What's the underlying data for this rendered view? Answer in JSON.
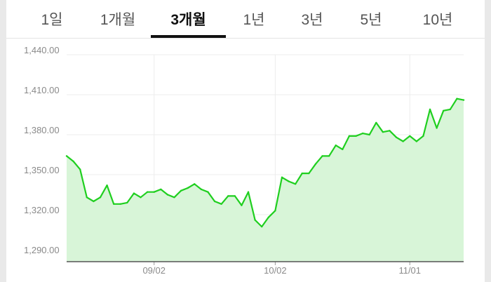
{
  "tabs": [
    {
      "label": "1일",
      "active": false
    },
    {
      "label": "1개월",
      "active": false
    },
    {
      "label": "3개월",
      "active": true
    },
    {
      "label": "1년",
      "active": false
    },
    {
      "label": "3년",
      "active": false
    },
    {
      "label": "5년",
      "active": false
    },
    {
      "label": "10년",
      "active": false
    }
  ],
  "colors": {
    "line": "#1fcf1f",
    "fill": "#d8f5d8",
    "grid": "#ececec",
    "axis": "#555555",
    "active_tab": "#111111"
  },
  "chart_data": {
    "type": "area",
    "title": "",
    "xlabel": "",
    "ylabel": "",
    "ylim": [
      1290,
      1450
    ],
    "y_ticks": [
      1290,
      1320,
      1350,
      1380,
      1410,
      1440
    ],
    "y_tick_labels": [
      "1,290.00",
      "1,320.00",
      "1,350.00",
      "1,380.00",
      "1,410.00",
      "1,440.00"
    ],
    "x_tick_labels": [
      {
        "label": "09/02",
        "index": 13
      },
      {
        "label": "10/02",
        "index": 31
      },
      {
        "label": "11/01",
        "index": 51
      }
    ],
    "grid": true,
    "series": [
      {
        "values": [
          1364,
          1360,
          1354,
          1333,
          1330,
          1333,
          1342,
          1328,
          1328,
          1329,
          1336,
          1333,
          1337,
          1337,
          1339,
          1335,
          1333,
          1338,
          1340,
          1343,
          1339,
          1337,
          1330,
          1328,
          1334,
          1334,
          1327,
          1337,
          1316,
          1311,
          1318,
          1323,
          1348,
          1345,
          1343,
          1351,
          1351,
          1358,
          1364,
          1364,
          1372,
          1369,
          1379,
          1379,
          1381,
          1380,
          1389,
          1382,
          1383,
          1378,
          1375,
          1379,
          1375,
          1379,
          1399,
          1385,
          1398,
          1399,
          1407,
          1406
        ]
      }
    ]
  }
}
